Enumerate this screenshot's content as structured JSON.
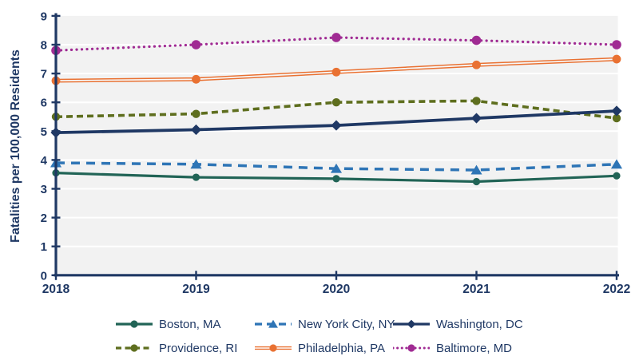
{
  "chart_data": {
    "type": "line",
    "title": "",
    "xlabel": "",
    "ylabel": "Fatalities per 100,000 Residents",
    "x_categories": [
      "2018",
      "2019",
      "2020",
      "2021",
      "2022"
    ],
    "ylim": [
      0,
      9
    ],
    "yticks": [
      0,
      1,
      2,
      3,
      4,
      5,
      6,
      7,
      8,
      9
    ],
    "grid": "horizontal",
    "legend_position": "bottom",
    "colors": {
      "plot_background": "#F2F2F2",
      "gridline": "#FFFFFF",
      "axis": "#1F3864",
      "text": "#1F3864"
    },
    "series": [
      {
        "name": "Boston, MA",
        "color": "#216456",
        "line_style": "solid",
        "marker": "circle",
        "values": [
          3.55,
          3.4,
          3.35,
          3.25,
          3.45
        ]
      },
      {
        "name": "New York City, NY",
        "color": "#2E75B6",
        "line_style": "dashed",
        "marker": "triangle",
        "values": [
          3.9,
          3.85,
          3.7,
          3.65,
          3.85
        ]
      },
      {
        "name": "Washington, DC",
        "color": "#1F3864",
        "line_style": "solid",
        "marker": "diamond",
        "values": [
          4.95,
          5.05,
          5.2,
          5.45,
          5.7
        ]
      },
      {
        "name": "Providence, RI",
        "color": "#5E6E1E",
        "line_style": "dashed",
        "marker": "circle",
        "values": [
          5.5,
          5.6,
          6.0,
          6.05,
          5.45
        ]
      },
      {
        "name": "Philadelphia, PA",
        "color": "#E97132",
        "line_style": "double",
        "marker": "circle",
        "values": [
          6.75,
          6.8,
          7.05,
          7.3,
          7.5
        ]
      },
      {
        "name": "Baltimore, MD",
        "color": "#A02B93",
        "line_style": "dotted",
        "marker": "circle",
        "values": [
          7.8,
          8.0,
          8.25,
          8.15,
          8.0
        ]
      }
    ]
  }
}
